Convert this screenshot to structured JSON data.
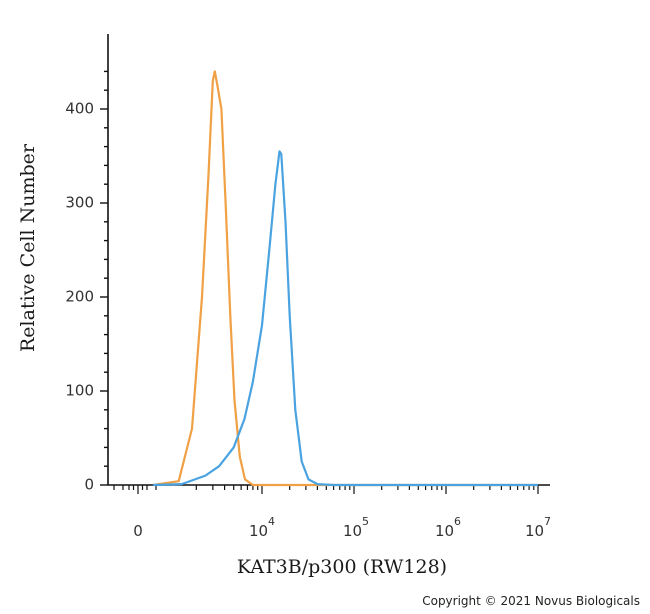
{
  "chart_data": {
    "type": "line",
    "xlabel": "KAT3B/p300 (RW128)",
    "ylabel": "Relative Cell Number",
    "x_scale": "biexponential",
    "ylim": [
      0,
      450
    ],
    "grid": false,
    "x_tick_labels": [
      {
        "base": "0",
        "exp": ""
      },
      {
        "base": "10",
        "exp": "4"
      },
      {
        "base": "10",
        "exp": "5"
      },
      {
        "base": "10",
        "exp": "6"
      },
      {
        "base": "10",
        "exp": "7"
      }
    ],
    "y_ticks": [
      0,
      100,
      200,
      300,
      400
    ],
    "series": [
      {
        "color": "#F0A045",
        "points": [
          [
            500,
            0
          ],
          [
            1300,
            4
          ],
          [
            1800,
            60
          ],
          [
            2300,
            200
          ],
          [
            2700,
            330
          ],
          [
            3000,
            430
          ],
          [
            3150,
            440
          ],
          [
            3350,
            425
          ],
          [
            3700,
            400
          ],
          [
            4100,
            300
          ],
          [
            4600,
            180
          ],
          [
            5100,
            90
          ],
          [
            5800,
            30
          ],
          [
            6600,
            6
          ],
          [
            8000,
            0
          ],
          [
            10000000,
            0
          ]
        ]
      },
      {
        "color": "#4AA3E0",
        "points": [
          [
            500,
            0
          ],
          [
            1400,
            1
          ],
          [
            2500,
            10
          ],
          [
            3500,
            20
          ],
          [
            5000,
            40
          ],
          [
            6500,
            70
          ],
          [
            8000,
            110
          ],
          [
            10000,
            170
          ],
          [
            12000,
            250
          ],
          [
            14000,
            320
          ],
          [
            15500,
            355
          ],
          [
            16200,
            352
          ],
          [
            18000,
            280
          ],
          [
            20000,
            180
          ],
          [
            23000,
            80
          ],
          [
            27000,
            25
          ],
          [
            32000,
            6
          ],
          [
            40000,
            1
          ],
          [
            60000,
            0
          ],
          [
            10000000,
            0
          ]
        ]
      }
    ]
  },
  "footer": {
    "copyright": "Copyright © 2021 Novus Biologicals"
  }
}
